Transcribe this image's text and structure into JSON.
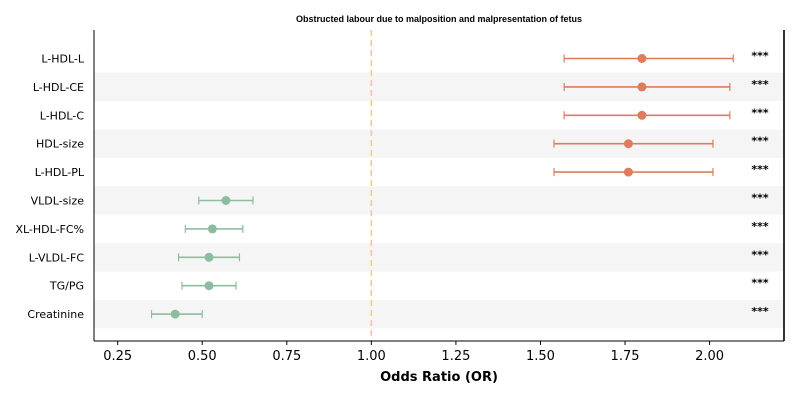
{
  "chart_data": {
    "type": "forest",
    "title": "Obstructed labour due to malposition and malpresentation of fetus",
    "xlabel": "Odds Ratio (OR)",
    "ylabel": "",
    "xlim": [
      0.18,
      2.22
    ],
    "xticks": [
      0.25,
      0.5,
      0.75,
      1.0,
      1.25,
      1.5,
      1.75,
      2.0
    ],
    "xtick_labels": [
      "0.25",
      "0.50",
      "0.75",
      "1.00",
      "1.25",
      "1.50",
      "1.75",
      "2.00"
    ],
    "reference_line": 1.0,
    "grid": false,
    "row_shading": "alternating",
    "colors": {
      "positive": "#e07b5d",
      "negative": "#8dbd9f",
      "reference": "#f6c98d",
      "band": "#f5f5f5"
    },
    "items": [
      {
        "label": "L-HDL-L",
        "or": 1.8,
        "lower": 1.57,
        "upper": 2.07,
        "sig": "***"
      },
      {
        "label": "L-HDL-CE",
        "or": 1.8,
        "lower": 1.57,
        "upper": 2.06,
        "sig": "***"
      },
      {
        "label": "L-HDL-C",
        "or": 1.8,
        "lower": 1.57,
        "upper": 2.06,
        "sig": "***"
      },
      {
        "label": "HDL-size",
        "or": 1.76,
        "lower": 1.54,
        "upper": 2.01,
        "sig": "***"
      },
      {
        "label": "L-HDL-PL",
        "or": 1.76,
        "lower": 1.54,
        "upper": 2.01,
        "sig": "***"
      },
      {
        "label": "VLDL-size",
        "or": 0.57,
        "lower": 0.49,
        "upper": 0.65,
        "sig": "***"
      },
      {
        "label": "XL-HDL-FC%",
        "or": 0.53,
        "lower": 0.45,
        "upper": 0.62,
        "sig": "***"
      },
      {
        "label": "L-VLDL-FC",
        "or": 0.52,
        "lower": 0.43,
        "upper": 0.61,
        "sig": "***"
      },
      {
        "label": "TG/PG",
        "or": 0.52,
        "lower": 0.44,
        "upper": 0.6,
        "sig": "***"
      },
      {
        "label": "Creatinine",
        "or": 0.42,
        "lower": 0.35,
        "upper": 0.5,
        "sig": "***"
      }
    ]
  }
}
